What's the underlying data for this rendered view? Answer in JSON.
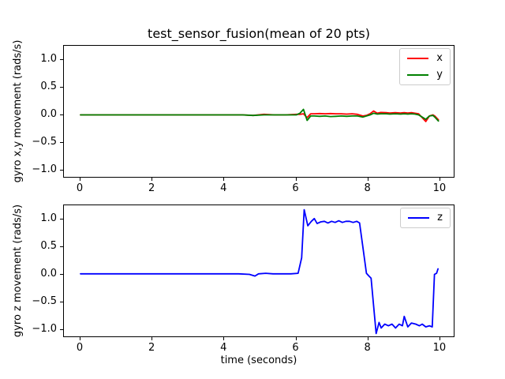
{
  "figure": {
    "background": "#ffffff",
    "xlabel": "time (seconds)"
  },
  "chart_data": [
    {
      "type": "line",
      "title": "test_sensor_fusion(mean of 20 pts)",
      "xlabel": "",
      "ylabel": "gyro x,y movement (rads/s)",
      "xlim": [
        -0.46,
        10.42
      ],
      "ylim": [
        -1.15,
        1.25
      ],
      "grid": false,
      "legend_position": "upper right",
      "xticks": [
        0,
        2,
        4,
        6,
        8,
        10
      ],
      "xticklabels": [
        "0",
        "2",
        "4",
        "6",
        "8",
        "10"
      ],
      "yticks": [
        1.0,
        0.5,
        0.0,
        -0.5,
        -1.0
      ],
      "yticklabels": [
        "1.0",
        "0.5",
        "0.0",
        "−0.5",
        "−1.0"
      ],
      "series": [
        {
          "name": "x",
          "color": "#ff0000",
          "points": [
            [
              0,
              0
            ],
            [
              0.3,
              0
            ],
            [
              0.6,
              0
            ],
            [
              0.9,
              0
            ],
            [
              1.2,
              0
            ],
            [
              1.5,
              0
            ],
            [
              1.8,
              0
            ],
            [
              2.1,
              0
            ],
            [
              2.4,
              0
            ],
            [
              2.7,
              0
            ],
            [
              3.0,
              0
            ],
            [
              3.3,
              0
            ],
            [
              3.6,
              0
            ],
            [
              3.9,
              0
            ],
            [
              4.2,
              0
            ],
            [
              4.5,
              0
            ],
            [
              4.8,
              -0.01
            ],
            [
              5.1,
              0.01
            ],
            [
              5.4,
              0
            ],
            [
              5.7,
              0
            ],
            [
              6.0,
              0.01
            ],
            [
              6.1,
              0.01
            ],
            [
              6.2,
              0.02
            ],
            [
              6.3,
              -0.05
            ],
            [
              6.4,
              0.02
            ],
            [
              6.5,
              0.02
            ],
            [
              6.65,
              0.025
            ],
            [
              6.8,
              0.02
            ],
            [
              6.95,
              0.025
            ],
            [
              7.1,
              0.02
            ],
            [
              7.25,
              0.02
            ],
            [
              7.4,
              0.015
            ],
            [
              7.55,
              0.02
            ],
            [
              7.7,
              0.01
            ],
            [
              7.85,
              -0.02
            ],
            [
              7.95,
              -0.01
            ],
            [
              8.05,
              0.02
            ],
            [
              8.15,
              0.07
            ],
            [
              8.25,
              0.03
            ],
            [
              8.35,
              0.045
            ],
            [
              8.5,
              0.04
            ],
            [
              8.6,
              0.035
            ],
            [
              8.75,
              0.04
            ],
            [
              8.9,
              0.035
            ],
            [
              9.0,
              0.04
            ],
            [
              9.1,
              0.035
            ],
            [
              9.2,
              0.04
            ],
            [
              9.3,
              0.03
            ],
            [
              9.4,
              0.02
            ],
            [
              9.5,
              -0.05
            ],
            [
              9.6,
              -0.12
            ],
            [
              9.7,
              -0.02
            ],
            [
              9.8,
              0.0
            ],
            [
              9.85,
              -0.02
            ],
            [
              9.95,
              -0.09
            ]
          ]
        },
        {
          "name": "y",
          "color": "#008000",
          "points": [
            [
              0,
              0
            ],
            [
              0.3,
              0
            ],
            [
              0.6,
              0
            ],
            [
              0.9,
              0
            ],
            [
              1.2,
              0
            ],
            [
              1.5,
              0
            ],
            [
              1.8,
              0
            ],
            [
              2.1,
              0
            ],
            [
              2.4,
              0
            ],
            [
              2.7,
              0
            ],
            [
              3.0,
              0
            ],
            [
              3.3,
              0
            ],
            [
              3.6,
              0
            ],
            [
              3.9,
              0
            ],
            [
              4.2,
              0
            ],
            [
              4.5,
              0
            ],
            [
              4.8,
              -0.01
            ],
            [
              5.1,
              0.0
            ],
            [
              5.4,
              0
            ],
            [
              5.7,
              0
            ],
            [
              6.0,
              0.0
            ],
            [
              6.1,
              0.03
            ],
            [
              6.2,
              0.1
            ],
            [
              6.3,
              -0.1
            ],
            [
              6.4,
              -0.02
            ],
            [
              6.5,
              -0.02
            ],
            [
              6.65,
              -0.025
            ],
            [
              6.8,
              -0.02
            ],
            [
              6.95,
              -0.03
            ],
            [
              7.1,
              -0.025
            ],
            [
              7.25,
              -0.02
            ],
            [
              7.4,
              -0.025
            ],
            [
              7.55,
              -0.02
            ],
            [
              7.7,
              -0.02
            ],
            [
              7.85,
              -0.04
            ],
            [
              7.95,
              -0.02
            ],
            [
              8.05,
              0.0
            ],
            [
              8.15,
              0.03
            ],
            [
              8.25,
              0.015
            ],
            [
              8.35,
              0.02
            ],
            [
              8.5,
              0.02
            ],
            [
              8.6,
              0.015
            ],
            [
              8.75,
              0.02
            ],
            [
              8.9,
              0.015
            ],
            [
              9.0,
              0.02
            ],
            [
              9.1,
              0.015
            ],
            [
              9.2,
              0.02
            ],
            [
              9.3,
              0.015
            ],
            [
              9.4,
              0.0
            ],
            [
              9.5,
              -0.04
            ],
            [
              9.6,
              -0.08
            ],
            [
              9.7,
              -0.02
            ],
            [
              9.8,
              -0.01
            ],
            [
              9.85,
              -0.04
            ],
            [
              9.95,
              -0.11
            ]
          ]
        }
      ]
    },
    {
      "type": "line",
      "title": "",
      "xlabel": "time (seconds)",
      "ylabel": "gyro z movement (rads/s)",
      "xlim": [
        -0.46,
        10.42
      ],
      "ylim": [
        -1.15,
        1.25
      ],
      "grid": false,
      "legend_position": "upper right",
      "xticks": [
        0,
        2,
        4,
        6,
        8,
        10
      ],
      "xticklabels": [
        "0",
        "2",
        "4",
        "6",
        "8",
        "10"
      ],
      "yticks": [
        1.0,
        0.5,
        0.0,
        -0.5,
        -1.0
      ],
      "yticklabels": [
        "1.0",
        "0.5",
        "0.0",
        "−0.5",
        "−1.0"
      ],
      "series": [
        {
          "name": "z",
          "color": "#0000ff",
          "points": [
            [
              0,
              0.01
            ],
            [
              0.5,
              0.01
            ],
            [
              1.0,
              0.01
            ],
            [
              1.5,
              0.01
            ],
            [
              2.0,
              0.01
            ],
            [
              2.5,
              0.01
            ],
            [
              3.0,
              0.01
            ],
            [
              3.5,
              0.01
            ],
            [
              4.0,
              0.01
            ],
            [
              4.4,
              0.01
            ],
            [
              4.7,
              0.0
            ],
            [
              4.85,
              -0.03
            ],
            [
              4.95,
              0.01
            ],
            [
              5.15,
              0.02
            ],
            [
              5.35,
              0.01
            ],
            [
              5.6,
              0.01
            ],
            [
              5.85,
              0.01
            ],
            [
              6.05,
              0.02
            ],
            [
              6.15,
              0.3
            ],
            [
              6.22,
              1.17
            ],
            [
              6.32,
              0.88
            ],
            [
              6.42,
              0.96
            ],
            [
              6.5,
              1.01
            ],
            [
              6.58,
              0.92
            ],
            [
              6.68,
              0.95
            ],
            [
              6.78,
              0.96
            ],
            [
              6.88,
              0.93
            ],
            [
              6.98,
              0.96
            ],
            [
              7.08,
              0.94
            ],
            [
              7.18,
              0.97
            ],
            [
              7.28,
              0.94
            ],
            [
              7.38,
              0.96
            ],
            [
              7.48,
              0.96
            ],
            [
              7.58,
              0.94
            ],
            [
              7.68,
              0.96
            ],
            [
              7.76,
              0.93
            ],
            [
              7.86,
              0.45
            ],
            [
              7.95,
              0.02
            ],
            [
              8.02,
              -0.03
            ],
            [
              8.08,
              -0.07
            ],
            [
              8.16,
              -0.65
            ],
            [
              8.22,
              -1.07
            ],
            [
              8.3,
              -0.87
            ],
            [
              8.36,
              -0.97
            ],
            [
              8.46,
              -0.9
            ],
            [
              8.56,
              -0.93
            ],
            [
              8.66,
              -0.9
            ],
            [
              8.76,
              -0.97
            ],
            [
              8.86,
              -0.9
            ],
            [
              8.95,
              -0.93
            ],
            [
              9.0,
              -0.76
            ],
            [
              9.1,
              -0.95
            ],
            [
              9.2,
              -0.88
            ],
            [
              9.32,
              -0.9
            ],
            [
              9.42,
              -0.93
            ],
            [
              9.5,
              -0.9
            ],
            [
              9.6,
              -0.95
            ],
            [
              9.7,
              -0.93
            ],
            [
              9.78,
              -0.95
            ],
            [
              9.84,
              0.0
            ],
            [
              9.9,
              0.02
            ],
            [
              9.94,
              0.1
            ]
          ]
        }
      ]
    }
  ]
}
